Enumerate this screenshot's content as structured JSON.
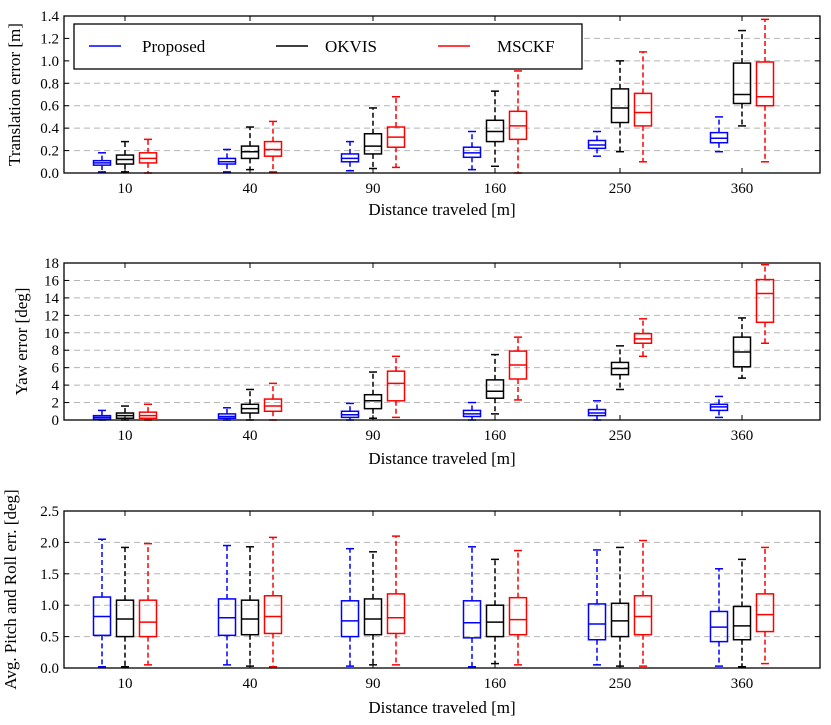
{
  "chart_data": [
    {
      "type": "boxplot",
      "xlabel": "Distance traveled [m]",
      "ylabel": "Translation error [m]",
      "ylim": [
        0,
        1.4
      ],
      "yticks": [
        0.0,
        0.2,
        0.4,
        0.6,
        0.8,
        1.0,
        1.2,
        1.4
      ],
      "ytick_labels": [
        "0.0",
        "0.2",
        "0.4",
        "0.6",
        "0.8",
        "1.0",
        "1.2",
        "1.4"
      ],
      "grid": "horizontal-dashed",
      "legend": "top-left",
      "categories": [
        "10",
        "40",
        "90",
        "160",
        "250",
        "360"
      ],
      "series": [
        {
          "name": "Proposed",
          "color": "#0000ff",
          "boxes": [
            {
              "whislo": 0.01,
              "q1": 0.07,
              "med": 0.09,
              "q3": 0.11,
              "whishi": 0.18
            },
            {
              "whislo": 0.01,
              "q1": 0.08,
              "med": 0.1,
              "q3": 0.13,
              "whishi": 0.21
            },
            {
              "whislo": 0.02,
              "q1": 0.1,
              "med": 0.13,
              "q3": 0.17,
              "whishi": 0.28
            },
            {
              "whislo": 0.03,
              "q1": 0.14,
              "med": 0.18,
              "q3": 0.23,
              "whishi": 0.37
            },
            {
              "whislo": 0.15,
              "q1": 0.22,
              "med": 0.25,
              "q3": 0.29,
              "whishi": 0.37
            },
            {
              "whislo": 0.19,
              "q1": 0.27,
              "med": 0.31,
              "q3": 0.36,
              "whishi": 0.5
            }
          ]
        },
        {
          "name": "OKVIS",
          "color": "#000000",
          "boxes": [
            {
              "whislo": 0.01,
              "q1": 0.08,
              "med": 0.12,
              "q3": 0.16,
              "whishi": 0.28
            },
            {
              "whislo": 0.03,
              "q1": 0.13,
              "med": 0.19,
              "q3": 0.24,
              "whishi": 0.41
            },
            {
              "whislo": 0.04,
              "q1": 0.17,
              "med": 0.24,
              "q3": 0.35,
              "whishi": 0.58
            },
            {
              "whislo": 0.06,
              "q1": 0.28,
              "med": 0.37,
              "q3": 0.47,
              "whishi": 0.73
            },
            {
              "whislo": 0.19,
              "q1": 0.45,
              "med": 0.58,
              "q3": 0.75,
              "whishi": 1.0
            },
            {
              "whislo": 0.42,
              "q1": 0.62,
              "med": 0.7,
              "q3": 0.98,
              "whishi": 1.27
            }
          ]
        },
        {
          "name": "MSCKF",
          "color": "#ff0000",
          "boxes": [
            {
              "whislo": 0.0,
              "q1": 0.09,
              "med": 0.13,
              "q3": 0.18,
              "whishi": 0.3
            },
            {
              "whislo": 0.01,
              "q1": 0.15,
              "med": 0.21,
              "q3": 0.28,
              "whishi": 0.46
            },
            {
              "whislo": 0.05,
              "q1": 0.23,
              "med": 0.32,
              "q3": 0.41,
              "whishi": 0.68
            },
            {
              "whislo": 0.0,
              "q1": 0.3,
              "med": 0.42,
              "q3": 0.55,
              "whishi": 0.91
            },
            {
              "whislo": 0.1,
              "q1": 0.42,
              "med": 0.54,
              "q3": 0.71,
              "whishi": 1.08
            },
            {
              "whislo": 0.1,
              "q1": 0.6,
              "med": 0.68,
              "q3": 0.99,
              "whishi": 1.37
            }
          ]
        }
      ]
    },
    {
      "type": "boxplot",
      "xlabel": "Distance traveled [m]",
      "ylabel": "Yaw error [deg]",
      "ylim": [
        0,
        18
      ],
      "yticks": [
        0,
        2,
        4,
        6,
        8,
        10,
        12,
        14,
        16,
        18
      ],
      "ytick_labels": [
        "0",
        "2",
        "4",
        "6",
        "8",
        "10",
        "12",
        "14",
        "16",
        "18"
      ],
      "grid": "horizontal-dashed",
      "categories": [
        "10",
        "40",
        "90",
        "160",
        "250",
        "360"
      ],
      "series": [
        {
          "name": "Proposed",
          "color": "#0000ff",
          "boxes": [
            {
              "whislo": 0.0,
              "q1": 0.1,
              "med": 0.3,
              "q3": 0.5,
              "whishi": 1.1
            },
            {
              "whislo": 0.0,
              "q1": 0.2,
              "med": 0.4,
              "q3": 0.7,
              "whishi": 1.4
            },
            {
              "whislo": 0.0,
              "q1": 0.3,
              "med": 0.6,
              "q3": 1.0,
              "whishi": 1.9
            },
            {
              "whislo": 0.0,
              "q1": 0.4,
              "med": 0.7,
              "q3": 1.1,
              "whishi": 2.0
            },
            {
              "whislo": 0.0,
              "q1": 0.5,
              "med": 0.8,
              "q3": 1.2,
              "whishi": 2.2
            },
            {
              "whislo": 0.3,
              "q1": 1.1,
              "med": 1.5,
              "q3": 1.8,
              "whishi": 2.7
            }
          ]
        },
        {
          "name": "OKVIS",
          "color": "#000000",
          "boxes": [
            {
              "whislo": 0.0,
              "q1": 0.2,
              "med": 0.5,
              "q3": 0.8,
              "whishi": 1.6
            },
            {
              "whislo": 0.0,
              "q1": 0.8,
              "med": 1.3,
              "q3": 1.8,
              "whishi": 3.5
            },
            {
              "whislo": 0.2,
              "q1": 1.3,
              "med": 2.2,
              "q3": 2.9,
              "whishi": 5.5
            },
            {
              "whislo": 0.7,
              "q1": 2.5,
              "med": 3.3,
              "q3": 4.6,
              "whishi": 7.5
            },
            {
              "whislo": 3.5,
              "q1": 5.2,
              "med": 5.9,
              "q3": 6.6,
              "whishi": 8.5
            },
            {
              "whislo": 4.8,
              "q1": 6.1,
              "med": 7.8,
              "q3": 9.5,
              "whishi": 11.7
            }
          ]
        },
        {
          "name": "MSCKF",
          "color": "#ff0000",
          "boxes": [
            {
              "whislo": 0.0,
              "q1": 0.2,
              "med": 0.5,
              "q3": 0.9,
              "whishi": 1.8
            },
            {
              "whislo": 0.0,
              "q1": 1.0,
              "med": 1.6,
              "q3": 2.4,
              "whishi": 4.2
            },
            {
              "whislo": 0.3,
              "q1": 2.2,
              "med": 4.2,
              "q3": 5.6,
              "whishi": 7.3
            },
            {
              "whislo": 2.3,
              "q1": 4.7,
              "med": 6.3,
              "q3": 7.9,
              "whishi": 9.5
            },
            {
              "whislo": 7.3,
              "q1": 8.8,
              "med": 9.3,
              "q3": 9.9,
              "whishi": 11.6
            },
            {
              "whislo": 8.8,
              "q1": 11.2,
              "med": 14.5,
              "q3": 16.1,
              "whishi": 17.8
            }
          ]
        }
      ]
    },
    {
      "type": "boxplot",
      "xlabel": "Distance traveled [m]",
      "ylabel": "Avg. Pitch and Roll err. [deg]",
      "ylim": [
        0,
        2.5
      ],
      "yticks": [
        0.0,
        0.5,
        1.0,
        1.5,
        2.0,
        2.5
      ],
      "ytick_labels": [
        "0.0",
        "0.5",
        "1.0",
        "1.5",
        "2.0",
        "2.5"
      ],
      "grid": "horizontal-dashed",
      "categories": [
        "10",
        "40",
        "90",
        "160",
        "250",
        "360"
      ],
      "series": [
        {
          "name": "Proposed",
          "color": "#0000ff",
          "boxes": [
            {
              "whislo": 0.02,
              "q1": 0.52,
              "med": 0.82,
              "q3": 1.13,
              "whishi": 2.05
            },
            {
              "whislo": 0.05,
              "q1": 0.52,
              "med": 0.8,
              "q3": 1.1,
              "whishi": 1.95
            },
            {
              "whislo": 0.03,
              "q1": 0.5,
              "med": 0.75,
              "q3": 1.07,
              "whishi": 1.9
            },
            {
              "whislo": 0.02,
              "q1": 0.48,
              "med": 0.72,
              "q3": 1.07,
              "whishi": 1.93
            },
            {
              "whislo": 0.05,
              "q1": 0.45,
              "med": 0.7,
              "q3": 1.02,
              "whishi": 1.88
            },
            {
              "whislo": 0.03,
              "q1": 0.42,
              "med": 0.65,
              "q3": 0.9,
              "whishi": 1.58
            }
          ]
        },
        {
          "name": "OKVIS",
          "color": "#000000",
          "boxes": [
            {
              "whislo": 0.02,
              "q1": 0.5,
              "med": 0.78,
              "q3": 1.08,
              "whishi": 1.92
            },
            {
              "whislo": 0.03,
              "q1": 0.53,
              "med": 0.78,
              "q3": 1.08,
              "whishi": 1.93
            },
            {
              "whislo": 0.05,
              "q1": 0.53,
              "med": 0.78,
              "q3": 1.1,
              "whishi": 1.85
            },
            {
              "whislo": 0.07,
              "q1": 0.5,
              "med": 0.73,
              "q3": 1.0,
              "whishi": 1.73
            },
            {
              "whislo": 0.03,
              "q1": 0.5,
              "med": 0.75,
              "q3": 1.03,
              "whishi": 1.92
            },
            {
              "whislo": 0.02,
              "q1": 0.45,
              "med": 0.67,
              "q3": 0.98,
              "whishi": 1.73
            }
          ]
        },
        {
          "name": "MSCKF",
          "color": "#ff0000",
          "boxes": [
            {
              "whislo": 0.05,
              "q1": 0.5,
              "med": 0.73,
              "q3": 1.08,
              "whishi": 1.98
            },
            {
              "whislo": 0.02,
              "q1": 0.55,
              "med": 0.82,
              "q3": 1.15,
              "whishi": 2.08
            },
            {
              "whislo": 0.05,
              "q1": 0.55,
              "med": 0.8,
              "q3": 1.18,
              "whishi": 2.1
            },
            {
              "whislo": 0.05,
              "q1": 0.53,
              "med": 0.77,
              "q3": 1.12,
              "whishi": 1.87
            },
            {
              "whislo": 0.03,
              "q1": 0.53,
              "med": 0.82,
              "q3": 1.15,
              "whishi": 2.03
            },
            {
              "whislo": 0.07,
              "q1": 0.58,
              "med": 0.85,
              "q3": 1.18,
              "whishi": 1.92
            }
          ]
        }
      ]
    }
  ],
  "legend": {
    "entries": [
      "Proposed",
      "OKVIS",
      "MSCKF"
    ],
    "colors": [
      "#0000ff",
      "#000000",
      "#ff0000"
    ]
  }
}
